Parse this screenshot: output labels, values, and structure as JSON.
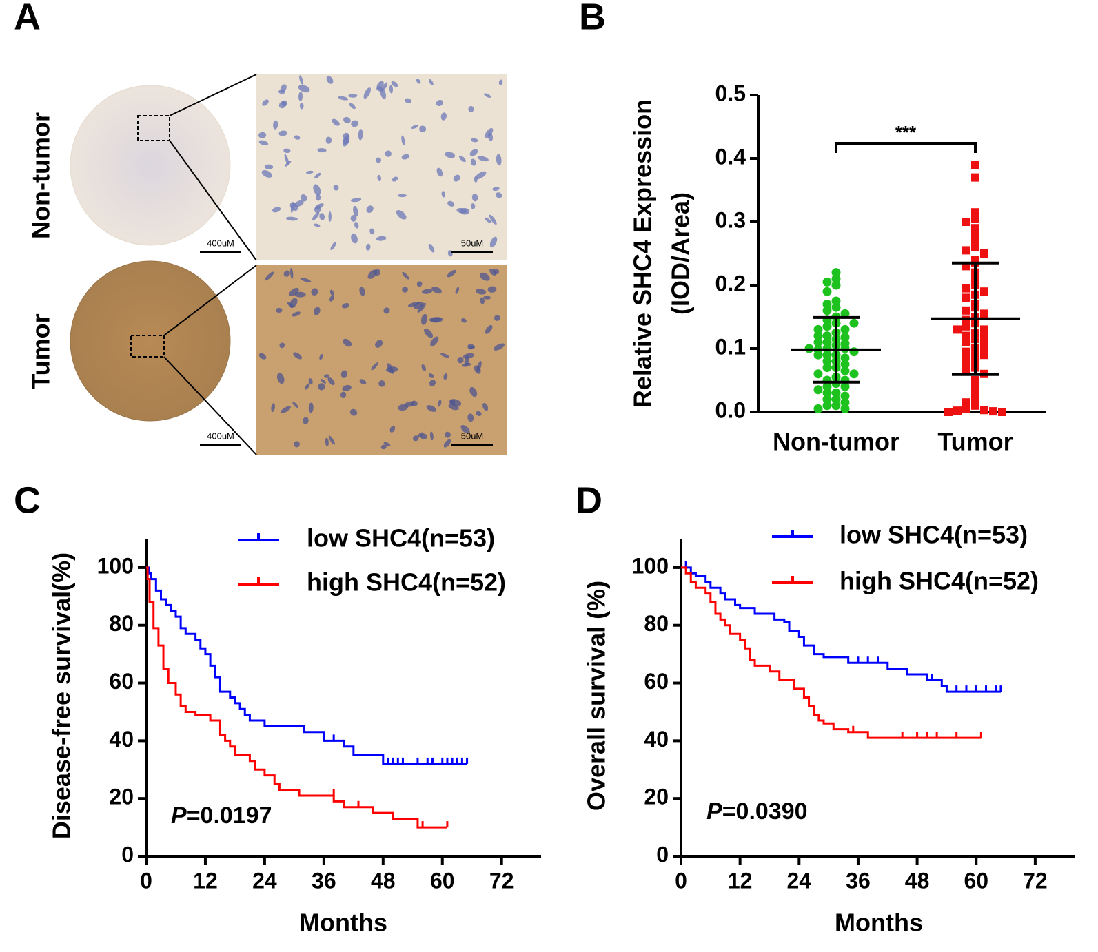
{
  "panel_a": {
    "letter": "A",
    "row_labels": [
      "Non-tumor",
      "Tumor"
    ],
    "scale_bars": [
      [
        "400uM",
        "50uM"
      ],
      [
        "400uM",
        "50uM"
      ]
    ]
  },
  "chart_data": [
    {
      "type": "dot",
      "letter": "B",
      "ylabel": [
        "Relative SHC4 Expression",
        "(IOD/Area)"
      ],
      "categories": [
        "Non-tumor",
        "Tumor"
      ],
      "groups": [
        {
          "color": "#1ec21e",
          "marker": "circle",
          "mean": 0.098,
          "sd": 0.051,
          "values": [
            0.21,
            0.22,
            0.205,
            0.2,
            0.19,
            0.175,
            0.17,
            0.165,
            0.16,
            0.155,
            0.15,
            0.145,
            0.14,
            0.135,
            0.13,
            0.125,
            0.12,
            0.118,
            0.115,
            0.11,
            0.108,
            0.105,
            0.1,
            0.1,
            0.098,
            0.095,
            0.09,
            0.09,
            0.085,
            0.08,
            0.08,
            0.075,
            0.07,
            0.07,
            0.065,
            0.06,
            0.06,
            0.055,
            0.05,
            0.05,
            0.045,
            0.04,
            0.04,
            0.035,
            0.03,
            0.03,
            0.025,
            0.02,
            0.02,
            0.015,
            0.01,
            0.01,
            0.005,
            0.005,
            0.13,
            0.14,
            0.12,
            0.11,
            0.1,
            0.09
          ]
        },
        {
          "color": "#ee1111",
          "marker": "square",
          "mean": 0.147,
          "sd": 0.088,
          "values": [
            0.39,
            0.37,
            0.315,
            0.305,
            0.3,
            0.29,
            0.28,
            0.27,
            0.26,
            0.255,
            0.25,
            0.24,
            0.235,
            0.23,
            0.22,
            0.21,
            0.2,
            0.195,
            0.19,
            0.185,
            0.18,
            0.17,
            0.165,
            0.16,
            0.155,
            0.15,
            0.145,
            0.14,
            0.135,
            0.13,
            0.125,
            0.12,
            0.115,
            0.11,
            0.1,
            0.095,
            0.09,
            0.085,
            0.08,
            0.075,
            0.07,
            0.065,
            0.06,
            0.05,
            0.04,
            0.03,
            0.02,
            0.015,
            0.01,
            0.005,
            0.003,
            0.002,
            0.001,
            0.0,
            0.0,
            0.12,
            0.13,
            0.09,
            0.1,
            0.11
          ]
        }
      ],
      "ylim": [
        0,
        0.5
      ],
      "yticks": [
        {
          "value": 0,
          "label": "0.0"
        },
        0.1,
        0.2,
        0.3,
        0.4,
        0.5
      ],
      "annotation": "***"
    },
    {
      "type": "km",
      "letter": "C",
      "ylabel": "Disease-free survival(%)",
      "xlabel": "Months",
      "xlim": [
        0,
        80
      ],
      "ylim": [
        0,
        110
      ],
      "xticks": [
        0,
        12,
        24,
        36,
        48,
        60,
        72
      ],
      "yticks": [
        0,
        20,
        40,
        60,
        80,
        100
      ],
      "p_value": {
        "symbol": "P",
        "text": "=0.0197"
      },
      "series": [
        {
          "name": "low SHC4(n=53)",
          "color": "#0000ff",
          "x": [
            0,
            0.5,
            1,
            2,
            3,
            4,
            5,
            6,
            7,
            8,
            10,
            11,
            12,
            13,
            14,
            15,
            17,
            18,
            19,
            20,
            21,
            24,
            32,
            36,
            40,
            42,
            48,
            65
          ],
          "values": [
            100,
            98,
            96,
            92,
            89,
            87,
            85,
            83,
            79,
            77,
            75,
            72,
            70,
            66,
            62,
            57,
            55,
            53,
            51,
            49,
            47,
            45,
            43,
            40,
            38,
            35,
            32,
            32
          ],
          "censor_x": [
            38,
            49,
            50,
            51,
            52,
            55,
            57,
            58,
            60,
            61,
            62,
            63,
            64,
            65
          ],
          "censor_values": [
            40,
            32,
            32,
            32,
            32,
            32,
            32,
            32,
            32,
            32,
            32,
            32,
            32,
            32
          ]
        },
        {
          "name": "high SHC4(n=52)",
          "color": "#ff0000",
          "x": [
            0,
            0.3,
            0.7,
            1.5,
            2.5,
            3.5,
            4.5,
            6,
            7,
            8,
            10,
            13,
            15,
            16,
            17,
            18,
            21,
            22,
            24,
            26,
            27,
            31,
            38,
            40,
            46,
            50,
            55,
            61
          ],
          "values": [
            100,
            96,
            88,
            79,
            73,
            65,
            60,
            56,
            52,
            50,
            49,
            47,
            42,
            40,
            38,
            35,
            33,
            30,
            28,
            25,
            23,
            21,
            19,
            17,
            15,
            13,
            10,
            10
          ],
          "censor_x": [
            38,
            43,
            56,
            61
          ],
          "censor_values": [
            21,
            17,
            10,
            10
          ]
        }
      ]
    },
    {
      "type": "km",
      "letter": "D",
      "ylabel": "Overall survival (%)",
      "xlabel": "Months",
      "xlim": [
        0,
        80
      ],
      "ylim": [
        0,
        110
      ],
      "xticks": [
        0,
        12,
        24,
        36,
        48,
        60,
        72
      ],
      "yticks": [
        0,
        20,
        40,
        60,
        80,
        100
      ],
      "p_value": {
        "symbol": "P",
        "text": "=0.0390"
      },
      "series": [
        {
          "name": "low SHC4(n=53)",
          "color": "#0000ff",
          "x": [
            0,
            2,
            3,
            5,
            6,
            8,
            9,
            11,
            12,
            15,
            19,
            21,
            22,
            24,
            25,
            27,
            29,
            34,
            42,
            46,
            50,
            53,
            54,
            65
          ],
          "values": [
            100,
            98,
            97,
            95,
            93,
            91,
            89,
            87,
            86,
            84,
            82,
            81,
            78,
            76,
            73,
            70,
            69,
            67,
            65,
            63,
            61,
            59,
            57,
            57
          ],
          "censor_x": [
            1,
            36,
            38,
            40,
            51,
            56,
            58,
            60,
            62,
            64,
            65
          ],
          "censor_values": [
            100,
            67,
            67,
            67,
            61,
            57,
            57,
            57,
            57,
            57,
            57
          ]
        },
        {
          "name": "high SHC4(n=52)",
          "color": "#ff0000",
          "x": [
            0,
            1,
            2,
            3,
            5,
            6,
            7,
            8,
            9,
            10,
            12,
            13,
            14,
            15,
            18,
            20,
            23,
            25,
            26,
            27,
            28,
            29,
            31,
            34,
            38,
            61
          ],
          "values": [
            100,
            98,
            95,
            93,
            91,
            88,
            84,
            82,
            80,
            77,
            75,
            72,
            68,
            66,
            64,
            61,
            58,
            55,
            52,
            49,
            47,
            46,
            44,
            43,
            41,
            41
          ],
          "censor_x": [
            35,
            45,
            48,
            50,
            52,
            56,
            61
          ],
          "censor_values": [
            43,
            41,
            41,
            41,
            41,
            41,
            41
          ]
        }
      ]
    }
  ]
}
